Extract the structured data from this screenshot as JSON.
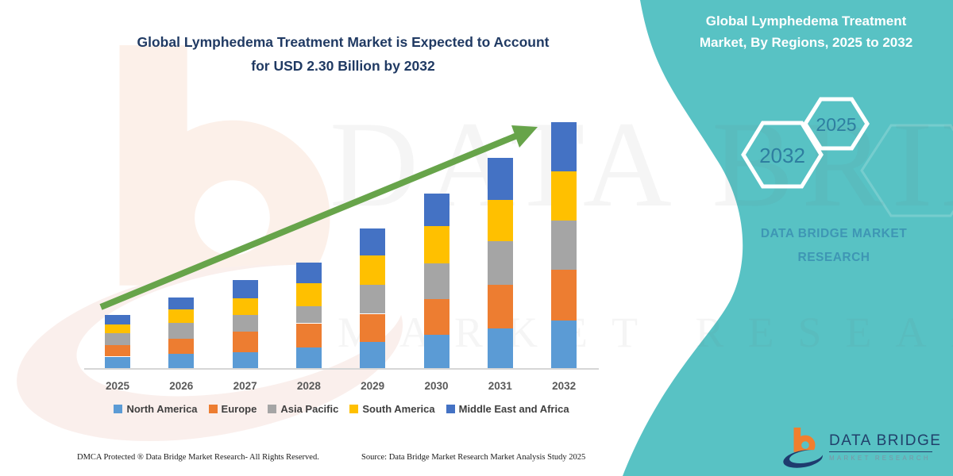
{
  "header": {
    "title": "Global Lymphedema Treatment Market is Expected to Account for USD 2.30 Billion by 2032",
    "title_line1": "Global Lymphedema Treatment Market is Expected to Account",
    "title_line2": "for USD 2.30 Billion by 2032"
  },
  "sidebar": {
    "title": "Global Lymphedema Treatment Market, By Regions, 2025 to 2032",
    "title_line1": "Global Lymphedema Treatment",
    "title_line2": "Market, By Regions, 2025 to 2032",
    "hexagons": [
      {
        "label": "2032"
      },
      {
        "label": "2025"
      }
    ],
    "brand_line1": "DATA BRIDGE MARKET",
    "brand_line2": "RESEARCH",
    "background_color": "#58C2C4",
    "hex_text_color": "#2E7EA0",
    "brand_text_color": "#3E96B4"
  },
  "logo": {
    "name": "DATA BRIDGE",
    "subtext": "MARKET RESEARCH"
  },
  "watermark": {
    "text_primary": "DATA BRIDGE",
    "text_secondary": "MARKET RESEARCH"
  },
  "footer": {
    "dmca": "DMCA Protected ® Data Bridge Market Research-  All Rights Reserved.",
    "source": "Source: Data Bridge Market Research  Market Analysis Study 2025"
  },
  "chart_data": {
    "type": "bar",
    "stacked": true,
    "title": "Global Lymphedema Treatment Market is Expected to Account for USD 2.30 Billion by 2032",
    "unit": "USD Billion",
    "categories": [
      "2025",
      "2026",
      "2027",
      "2028",
      "2029",
      "2030",
      "2031",
      "2032"
    ],
    "series": [
      {
        "name": "North America",
        "color": "#5B9BD5",
        "values": [
          0.115,
          0.141,
          0.154,
          0.203,
          0.25,
          0.317,
          0.378,
          0.453
        ]
      },
      {
        "name": "Europe",
        "color": "#ED7D31",
        "values": [
          0.105,
          0.141,
          0.191,
          0.223,
          0.265,
          0.334,
          0.408,
          0.47
        ]
      },
      {
        "name": "Asia Pacific",
        "color": "#A5A5A5",
        "values": [
          0.115,
          0.148,
          0.156,
          0.161,
          0.272,
          0.334,
          0.408,
          0.462
        ]
      },
      {
        "name": "South America",
        "color": "#FFC000",
        "values": [
          0.082,
          0.124,
          0.156,
          0.21,
          0.272,
          0.347,
          0.384,
          0.458
        ]
      },
      {
        "name": "Middle East and Africa",
        "color": "#4472C4",
        "values": [
          0.085,
          0.114,
          0.171,
          0.198,
          0.255,
          0.309,
          0.396,
          0.46
        ]
      }
    ],
    "totals_estimated": [
      0.5,
      0.67,
      0.83,
      1.0,
      1.31,
      1.64,
      1.97,
      2.3
    ],
    "ylim": [
      0,
      2.4
    ],
    "value_axis_visible": false,
    "gridlines": false,
    "legend_position": "bottom",
    "annotations": [
      "green upward trend arrow across bars"
    ],
    "trend_arrow_color": "#67A44A"
  }
}
